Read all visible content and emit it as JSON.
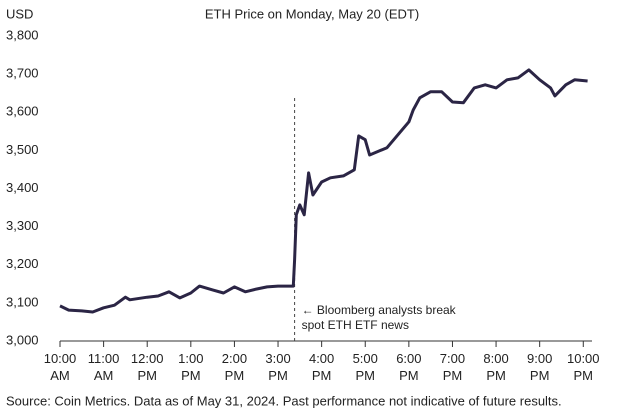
{
  "chart_data": {
    "type": "line",
    "title": "ETH Price on Monday, May 20 (EDT)",
    "ylabel": "USD",
    "source": "Source: Coin Metrics. Data as of May 31, 2024. Past performance not indicative of future results.",
    "annotation": {
      "text": "← Bloomberg analysts break spot ETH ETF news",
      "x": 15.38
    },
    "xlim": [
      10,
      22.2
    ],
    "xticks": [
      {
        "value": 10,
        "label": "10:00 AM"
      },
      {
        "value": 11,
        "label": "11:00 AM"
      },
      {
        "value": 12,
        "label": "12:00 PM"
      },
      {
        "value": 13,
        "label": "1:00 PM"
      },
      {
        "value": 14,
        "label": "2:00 PM"
      },
      {
        "value": 15,
        "label": "3:00 PM"
      },
      {
        "value": 16,
        "label": "4:00 PM"
      },
      {
        "value": 17,
        "label": "5:00 PM"
      },
      {
        "value": 18,
        "label": "6:00 PM"
      },
      {
        "value": 19,
        "label": "7:00 PM"
      },
      {
        "value": 20,
        "label": "8:00 PM"
      },
      {
        "value": 21,
        "label": "9:00 PM"
      },
      {
        "value": 22,
        "label": "10:00 PM"
      }
    ],
    "ylim": [
      3000,
      3800
    ],
    "yticks": [
      {
        "value": 3000,
        "label": "3,000"
      },
      {
        "value": 3100,
        "label": "3,100"
      },
      {
        "value": 3200,
        "label": "3,200"
      },
      {
        "value": 3300,
        "label": "3,300"
      },
      {
        "value": 3400,
        "label": "3,400"
      },
      {
        "value": 3500,
        "label": "3,500"
      },
      {
        "value": 3600,
        "label": "3,600"
      },
      {
        "value": 3700,
        "label": "3,700"
      },
      {
        "value": 3800,
        "label": "3,800"
      }
    ],
    "grid": false,
    "series": [
      {
        "name": "ETH",
        "color": "#2b2545",
        "x": [
          10,
          10.2,
          10.5,
          10.75,
          11,
          11.25,
          11.5,
          11.6,
          12,
          12.25,
          12.5,
          12.75,
          13,
          13.2,
          13.5,
          13.75,
          14,
          14.25,
          14.5,
          14.75,
          15,
          15.25,
          15.35,
          15.38,
          15.42,
          15.5,
          15.6,
          15.7,
          15.8,
          16,
          16.2,
          16.5,
          16.75,
          16.85,
          17,
          17.1,
          17.5,
          17.75,
          18,
          18.1,
          18.25,
          18.5,
          18.75,
          19,
          19.25,
          19.5,
          19.75,
          20,
          20.25,
          20.5,
          20.75,
          21,
          21.25,
          21.35,
          21.6,
          21.8,
          22.1
        ],
        "values": [
          3092,
          3081,
          3079,
          3076,
          3087,
          3094,
          3115,
          3108,
          3115,
          3118,
          3129,
          3113,
          3126,
          3144,
          3134,
          3126,
          3142,
          3129,
          3136,
          3142,
          3144,
          3144,
          3144,
          3213,
          3331,
          3357,
          3331,
          3441,
          3383,
          3417,
          3428,
          3433,
          3449,
          3538,
          3528,
          3488,
          3507,
          3541,
          3575,
          3606,
          3638,
          3654,
          3654,
          3627,
          3625,
          3664,
          3672,
          3664,
          3685,
          3690,
          3711,
          3685,
          3664,
          3643,
          3672,
          3685,
          3682
        ]
      }
    ]
  }
}
